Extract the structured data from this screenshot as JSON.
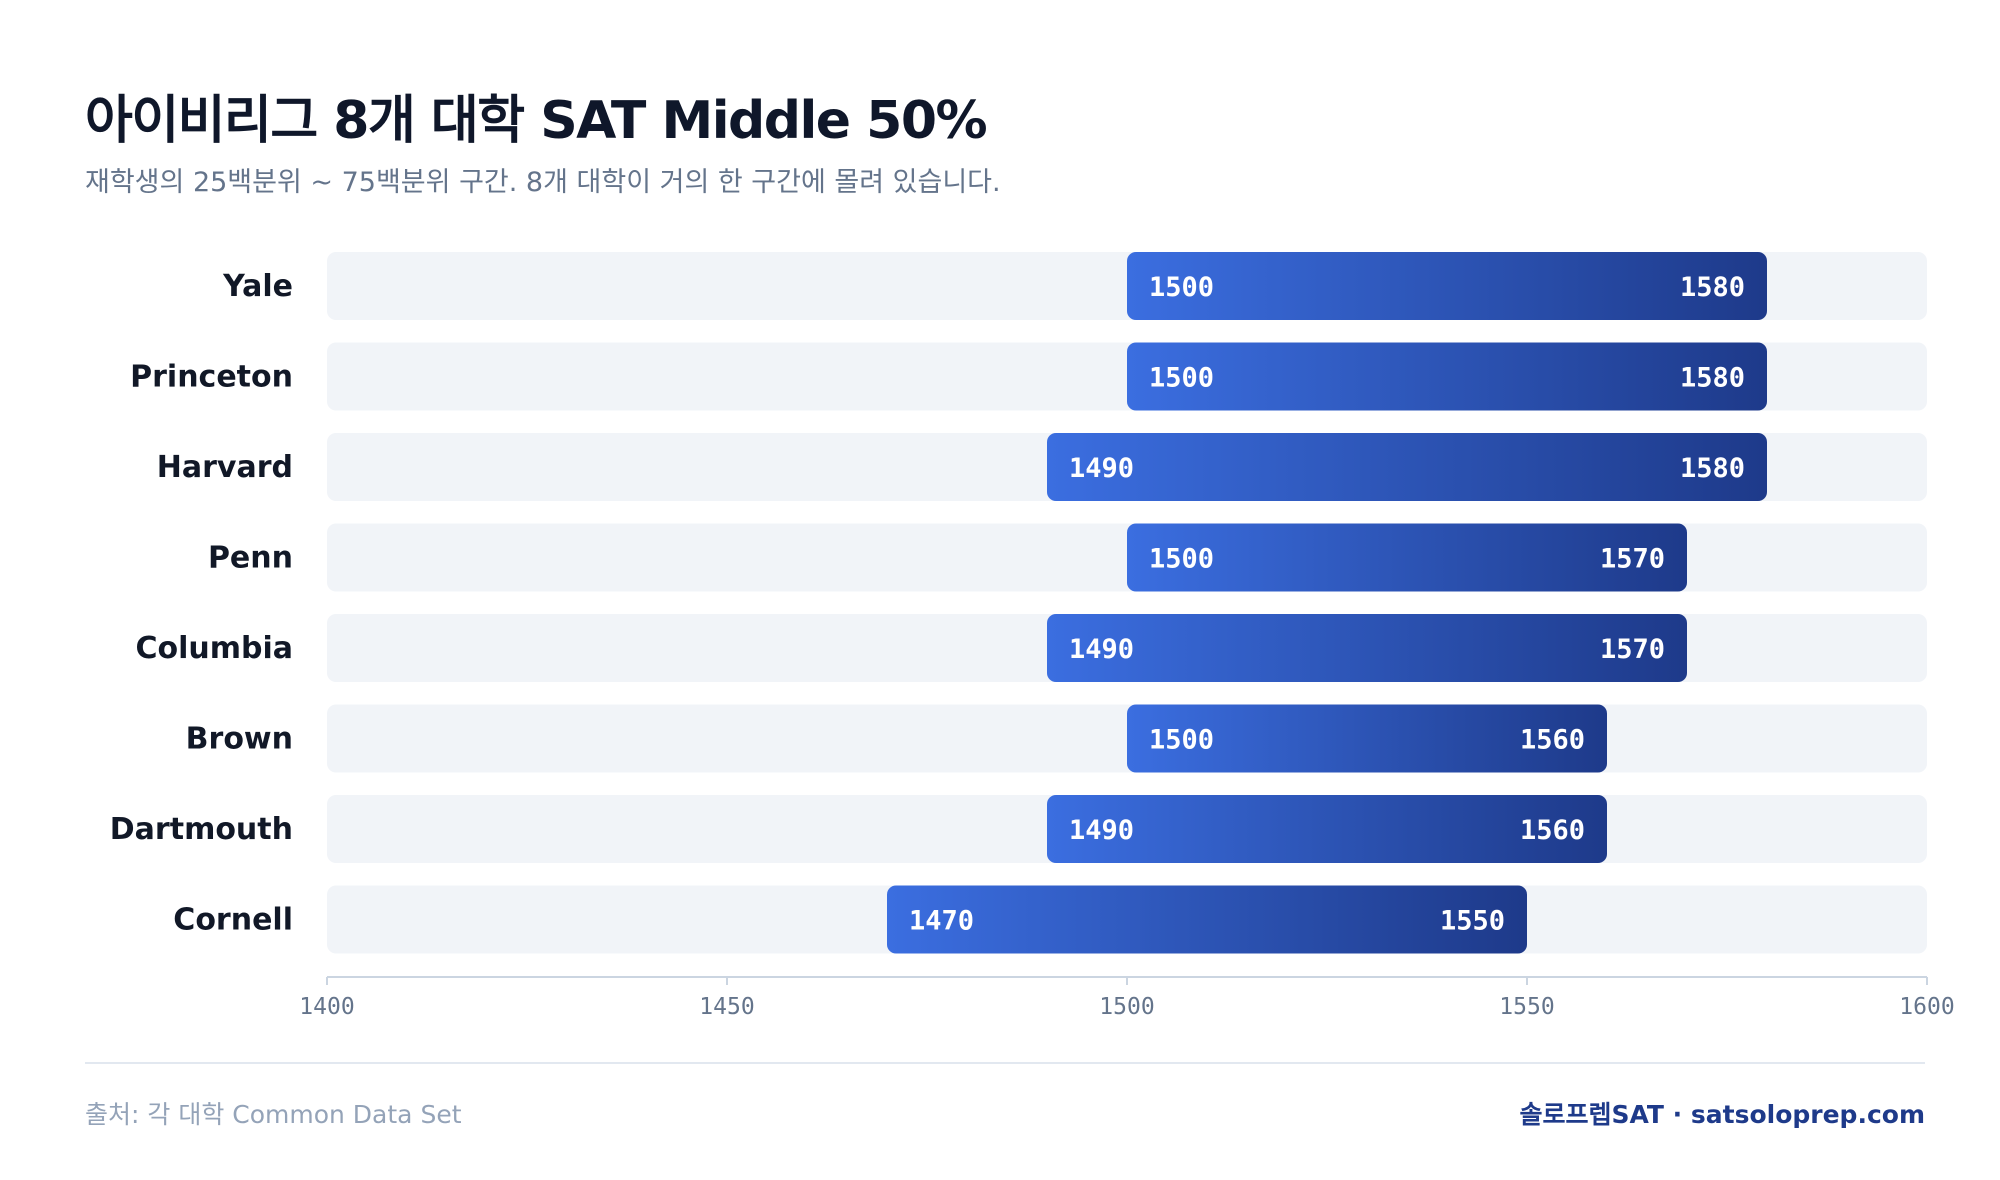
{
  "header": {
    "title": "아이비리그 8개 대학 SAT Middle 50%",
    "subtitle": "재학생의 25백분위 ~ 75백분위 구간. 8개 대학이 거의 한 구간에 몰려 있습니다."
  },
  "chart_data": {
    "type": "bar",
    "orientation": "horizontal-range",
    "categories": [
      "Yale",
      "Princeton",
      "Harvard",
      "Penn",
      "Columbia",
      "Brown",
      "Dartmouth",
      "Cornell"
    ],
    "series": [
      {
        "values": [
          1500,
          1500,
          1490,
          1500,
          1490,
          1500,
          1490,
          1470
        ]
      },
      {
        "values": [
          1580,
          1580,
          1580,
          1570,
          1570,
          1560,
          1560,
          1550
        ]
      }
    ],
    "xlim": [
      1400,
      1600
    ],
    "xticks": [
      1400,
      1450,
      1500,
      1550,
      1600
    ],
    "grid": false,
    "colors": {
      "bar_start": "#3b6ee0",
      "bar_end": "#1e3a8a",
      "track": "#f1f4f8",
      "axis": "#cbd5e1"
    }
  },
  "footer": {
    "source": "출처: 각 대학 Common Data Set",
    "brand": "솔로프렙SAT · satsoloprep.com"
  }
}
